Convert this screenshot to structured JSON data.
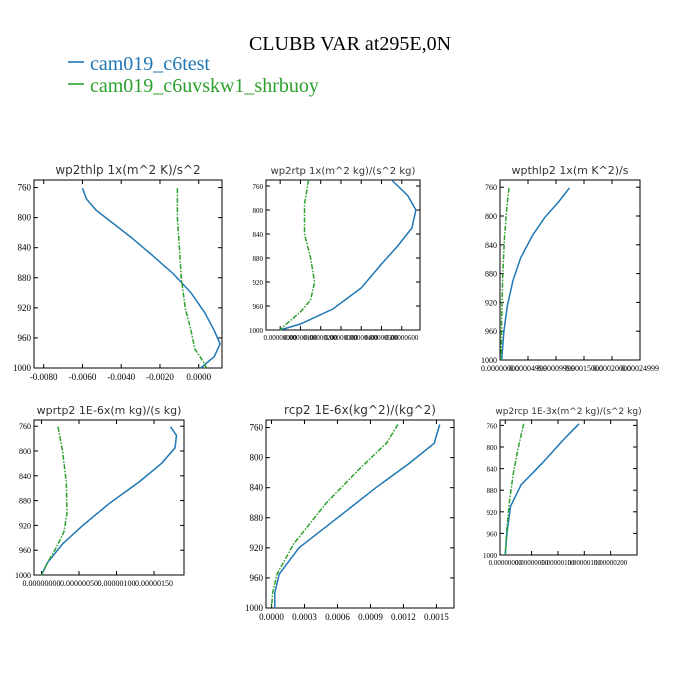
{
  "figure": {
    "title": "CLUBB VAR at295E,0N",
    "legend": [
      {
        "name": "cam019_c6test",
        "color": "#1f77b4"
      },
      {
        "name": "cam019_c6uvskw1_shrbuoy",
        "color": "#2ca02c"
      }
    ]
  },
  "chart_data": [
    {
      "type": "line",
      "title": "wp2thlp   1x(m^2 K)/s^2",
      "ylim": [
        1000,
        750
      ],
      "yticks": [
        "760",
        "800",
        "840",
        "880",
        "920",
        "960",
        "1000"
      ],
      "xlim": [
        -0.0085,
        0.0012
      ],
      "xticks": [
        "-0.0080",
        "-0.0060",
        "-0.0040",
        "-0.0020",
        "0.0000"
      ],
      "series": [
        {
          "name": "cam019_c6test",
          "points": [
            [
              -0.006,
              761
            ],
            [
              -0.0058,
              775
            ],
            [
              -0.0053,
              790
            ],
            [
              -0.0045,
              806
            ],
            [
              -0.0035,
              826
            ],
            [
              -0.0024,
              850
            ],
            [
              -0.0013,
              875
            ],
            [
              -0.0004,
              900
            ],
            [
              0.0003,
              926
            ],
            [
              0.0008,
              950
            ],
            [
              0.0011,
              968
            ],
            [
              0.0008,
              985
            ],
            [
              0.0001,
              1000
            ]
          ]
        },
        {
          "name": "cam019_c6uvskw1_shrbuoy",
          "points": [
            [
              -0.0011,
              761
            ],
            [
              -0.0011,
              800
            ],
            [
              -0.001,
              840
            ],
            [
              -0.0009,
              880
            ],
            [
              -0.0007,
              920
            ],
            [
              -0.0004,
              950
            ],
            [
              -0.0002,
              975
            ],
            [
              0.0002,
              990
            ],
            [
              0.0004,
              1000
            ]
          ]
        }
      ]
    },
    {
      "type": "line",
      "title": "wp2rtp   1x(m^2 kg)/(s^2 kg)",
      "ylim": [
        1000,
        750
      ],
      "yticks": [
        "760",
        "800",
        "840",
        "880",
        "920",
        "960",
        "1000"
      ],
      "xlim": [
        -7e-07,
        6.9e-06
      ],
      "xticks": [
        "0.00000000",
        "0.00000100",
        "0.00000200",
        "0.00000300",
        "0.00000400",
        "0.00000500",
        "0.00000600"
      ],
      "series": [
        {
          "name": "cam019_c6test",
          "points": [
            [
              5.5e-06,
              750
            ],
            [
              6.3e-06,
              776
            ],
            [
              6.7e-06,
              800
            ],
            [
              6.5e-06,
              830
            ],
            [
              5.8e-06,
              860
            ],
            [
              5e-06,
              890
            ],
            [
              4e-06,
              930
            ],
            [
              2.6e-06,
              965
            ],
            [
              1e-06,
              990
            ],
            [
              0.0,
              1000
            ]
          ]
        },
        {
          "name": "cam019_c6uvskw1_shrbuoy",
          "points": [
            [
              1.4e-06,
              750
            ],
            [
              1.2e-06,
              790
            ],
            [
              1.2e-06,
              840
            ],
            [
              1.5e-06,
              880
            ],
            [
              1.7e-06,
              920
            ],
            [
              1.5e-06,
              950
            ],
            [
              1e-06,
              970
            ],
            [
              3e-07,
              990
            ],
            [
              0.0,
              1000
            ]
          ]
        }
      ]
    },
    {
      "type": "line",
      "title": "wpthlp2   1x(m K^2)/s",
      "ylim": [
        1000,
        750
      ],
      "yticks": [
        "760",
        "800",
        "840",
        "880",
        "920",
        "960",
        "1000"
      ],
      "xlim": [
        0.0,
        0.00025
      ],
      "xticks": [
        "0.00000000",
        "0.00004999",
        "0.00009999",
        "0.00015000",
        "0.00020000",
        "0.00024999"
      ],
      "series": [
        {
          "name": "cam019_c6test",
          "points": [
            [
              0.000124,
              761
            ],
            [
              0.000105,
              780
            ],
            [
              8e-05,
              802
            ],
            [
              5.8e-05,
              827
            ],
            [
              3.7e-05,
              858
            ],
            [
              2.3e-05,
              890
            ],
            [
              1.3e-05,
              925
            ],
            [
              7e-06,
              960
            ],
            [
              3e-06,
              1000
            ]
          ]
        },
        {
          "name": "cam019_c6uvskw1_shrbuoy",
          "points": [
            [
              1.6e-05,
              761
            ],
            [
              1.2e-05,
              790
            ],
            [
              8e-06,
              830
            ],
            [
              5e-06,
              880
            ],
            [
              3e-06,
              940
            ],
            [
              2e-06,
              1000
            ]
          ]
        }
      ]
    },
    {
      "type": "line",
      "title": "wprtp2   1E-6x(m kg)/(s kg)",
      "ylim": [
        1000,
        750
      ],
      "yticks": [
        "760",
        "800",
        "840",
        "880",
        "920",
        "960",
        "1000"
      ],
      "xlim": [
        -1e-07,
        1.9e-06
      ],
      "xticks": [
        "0.00000000",
        "0.00000050",
        "0.00000100",
        "0.00000150"
      ],
      "series": [
        {
          "name": "cam019_c6test",
          "points": [
            [
              1.72e-06,
              761
            ],
            [
              1.8e-06,
              775
            ],
            [
              1.78e-06,
              795
            ],
            [
              1.6e-06,
              820
            ],
            [
              1.3e-06,
              850
            ],
            [
              9e-07,
              885
            ],
            [
              5.5e-07,
              920
            ],
            [
              2.8e-07,
              950
            ],
            [
              8e-08,
              980
            ],
            [
              0.0,
              1000
            ]
          ]
        },
        {
          "name": "cam019_c6uvskw1_shrbuoy",
          "points": [
            [
              2.2e-07,
              761
            ],
            [
              2.8e-07,
              800
            ],
            [
              3.3e-07,
              850
            ],
            [
              3.4e-07,
              900
            ],
            [
              3e-07,
              930
            ],
            [
              2e-07,
              955
            ],
            [
              8e-08,
              980
            ],
            [
              0.0,
              1000
            ]
          ]
        }
      ]
    },
    {
      "type": "line",
      "title": "rcp2   1E-6x(kg^2)/(kg^2)",
      "ylim": [
        1000,
        750
      ],
      "yticks": [
        "760",
        "800",
        "840",
        "880",
        "920",
        "960",
        "1000"
      ],
      "xlim": [
        -5e-05,
        0.00166
      ],
      "xticks": [
        "0.0000",
        "0.0003",
        "0.0006",
        "0.0009",
        "0.0012",
        "0.0015"
      ],
      "series": [
        {
          "name": "cam019_c6test",
          "points": [
            [
              0.00153,
              756
            ],
            [
              0.00148,
              781
            ],
            [
              0.00125,
              808
            ],
            [
              0.00095,
              840
            ],
            [
              0.0006,
              880
            ],
            [
              0.00025,
              920
            ],
            [
              7e-05,
              955
            ],
            [
              3e-05,
              980
            ],
            [
              3e-05,
              1000
            ]
          ]
        },
        {
          "name": "cam019_c6uvskw1_shrbuoy",
          "points": [
            [
              0.00115,
              756
            ],
            [
              0.00105,
              780
            ],
            [
              0.0008,
              815
            ],
            [
              0.0005,
              860
            ],
            [
              0.0002,
              915
            ],
            [
              5e-05,
              955
            ],
            [
              1e-05,
              980
            ],
            [
              0.0,
              1000
            ]
          ]
        }
      ]
    },
    {
      "type": "line",
      "title": "wp2rcp   1E-3x(m^2 kg)/(s^2 kg)",
      "ylim": [
        1000,
        750
      ],
      "yticks": [
        "760",
        "800",
        "840",
        "880",
        "920",
        "960",
        "1000"
      ],
      "xlim": [
        -1e-07,
        2.5e-06
      ],
      "xticks": [
        "0.00000000",
        "0.00000050",
        "0.00000100",
        "0.00000150",
        "0.00000200"
      ],
      "series": [
        {
          "name": "cam019_c6test",
          "points": [
            [
              1.4e-06,
              757
            ],
            [
              1.1e-06,
              787
            ],
            [
              7e-07,
              830
            ],
            [
              3e-07,
              870
            ],
            [
              1e-07,
              910
            ],
            [
              3e-08,
              960
            ],
            [
              0.0,
              1000
            ]
          ]
        },
        {
          "name": "cam019_c6uvskw1_shrbuoy",
          "points": [
            [
              3.5e-07,
              757
            ],
            [
              2.5e-07,
              800
            ],
            [
              1.5e-07,
              850
            ],
            [
              8e-08,
              900
            ],
            [
              3e-08,
              950
            ],
            [
              0.0,
              1000
            ]
          ]
        }
      ]
    }
  ]
}
